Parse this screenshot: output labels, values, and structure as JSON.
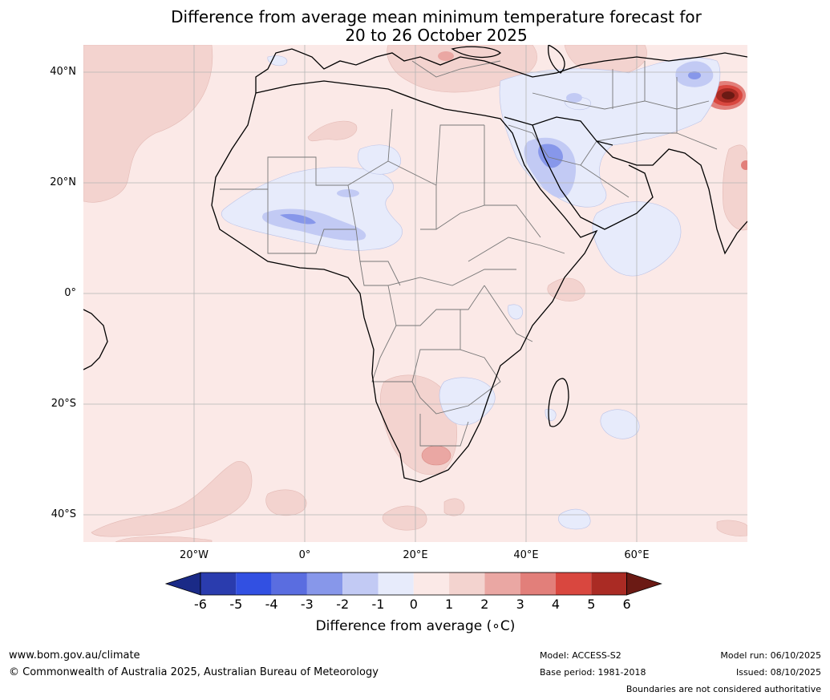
{
  "title": {
    "line1": "Difference from average mean minimum temperature forecast for",
    "line2": "20 to 26 October 2025"
  },
  "map": {
    "lat_labels": [
      "40°N",
      "20°N",
      "0°",
      "20°S",
      "40°S"
    ],
    "lon_labels": [
      "20°W",
      "0°",
      "20°E",
      "40°E",
      "60°E"
    ],
    "colors": {
      "land_base": "#fbe9e7",
      "warm_1_2": "#f3d3cf",
      "warm_2_3": "#eaa7a3",
      "warm_3_4": "#e27f7a",
      "warm_4_5": "#d9473f",
      "warm_5_6": "#aa2b24",
      "warm_6plus": "#6b1a14",
      "cool_0_m1": "#e7ebfb",
      "cool_m1_m2": "#c2caf4",
      "cool_m2_m3": "#8797ea",
      "cool_m3_m4": "#5a6de0",
      "coast": "#000000",
      "border": "#777777",
      "grid": "#b5b5b5"
    }
  },
  "colorbar": {
    "title": "Difference from average (∘C)",
    "ticks": [
      "-6",
      "-5",
      "-4",
      "-3",
      "-2",
      "-1",
      "0",
      "1",
      "2",
      "3",
      "4",
      "5",
      "6"
    ],
    "colors": [
      "#1a2a87",
      "#2a3cae",
      "#3250e2",
      "#5a6de0",
      "#8797ea",
      "#c2caf4",
      "#e7ebfb",
      "#fbe9e7",
      "#f3d3cf",
      "#eaa7a3",
      "#e27f7a",
      "#d9473f",
      "#aa2b24",
      "#6b1a14"
    ]
  },
  "footer": {
    "website": "www.bom.gov.au/climate",
    "copyright": "© Commonwealth of Australia 2025, Australian Bureau of Meteorology",
    "model": "Model: ACCESS-S2",
    "base_period": "Base period: 1981-2018",
    "model_run": "Model run: 06/10/2025",
    "issued": "Issued: 08/10/2025",
    "disclaimer": "Boundaries are not considered authoritative"
  }
}
